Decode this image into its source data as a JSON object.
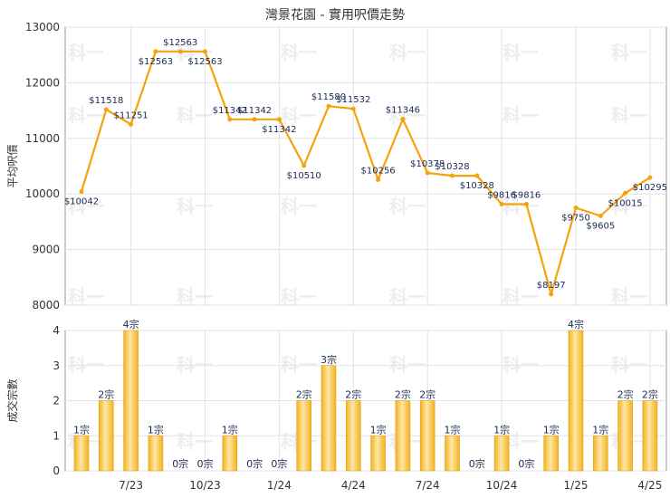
{
  "title": "灣景花園 - 實用呎價走勢",
  "colors": {
    "line": "#f5a30a",
    "bar": "#f2b21e",
    "bar_light": "#fde7a6",
    "grid": "#e3e3e3",
    "axis": "#999999"
  },
  "watermark": "科一",
  "chart_data": [
    {
      "type": "line",
      "title": "灣景花園 - 實用呎價走勢",
      "ylabel": "平均呎價",
      "ylim": [
        8000,
        13000
      ],
      "yticks": [
        8000,
        9000,
        10000,
        11000,
        12000,
        13000
      ],
      "x_tick_labels": [
        "7/23",
        "10/23",
        "1/24",
        "4/24",
        "7/24",
        "10/24",
        "1/25",
        "4/25"
      ],
      "grid": true,
      "series": [
        {
          "values": [
            10042,
            11518,
            11251,
            12563,
            12563,
            12563,
            11342,
            11342,
            11342,
            10510,
            11580,
            11532,
            10256,
            11346,
            10378,
            10328,
            10328,
            9816,
            9816,
            8197,
            9750,
            9605,
            10015,
            10295
          ],
          "labels": [
            "$10042",
            "$11518",
            "$11251",
            "$12563",
            "$12563",
            "$12563",
            "$11342",
            "$11342",
            "$11342",
            "$10510",
            "$11580",
            "$11532",
            "$10256",
            "$11346",
            "$10378",
            "$10328",
            "$10328",
            "$9816",
            "$9816",
            "$8197",
            "$9750",
            "$9605",
            "$10015",
            "$10295"
          ]
        }
      ]
    },
    {
      "type": "bar",
      "ylabel": "成交宗數",
      "ylim": [
        0,
        4
      ],
      "yticks": [
        0,
        1,
        2,
        3,
        4
      ],
      "x_tick_labels": [
        "7/23",
        "10/23",
        "1/24",
        "4/24",
        "7/24",
        "10/24",
        "1/25",
        "4/25"
      ],
      "grid": true,
      "values": [
        1,
        2,
        4,
        1,
        0,
        0,
        1,
        0,
        0,
        2,
        3,
        2,
        1,
        2,
        2,
        1,
        0,
        1,
        0,
        1,
        4,
        1,
        2,
        2
      ],
      "labels": [
        "1宗",
        "2宗",
        "4宗",
        "1宗",
        "0宗",
        "0宗",
        "1宗",
        "0宗",
        "0宗",
        "2宗",
        "3宗",
        "2宗",
        "1宗",
        "2宗",
        "2宗",
        "1宗",
        "0宗",
        "1宗",
        "0宗",
        "1宗",
        "4宗",
        "1宗",
        "2宗",
        "2宗"
      ]
    }
  ]
}
